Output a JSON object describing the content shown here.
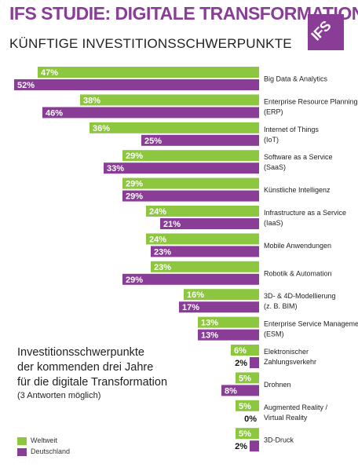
{
  "header": {
    "title": "IFS STUDIE: DIGITALE TRANSFORMATION",
    "subtitle": "KÜNFTIGE INVESTITIONSSCHWERPUNKTE",
    "logo_text": "IFS"
  },
  "description": {
    "lines": [
      "Investitionsschwerpunkte",
      "der kommenden drei Jahre",
      "für die digitale Transformation"
    ],
    "note": "(3 Antworten möglich)"
  },
  "colors": {
    "weltweit": "#8dc63f",
    "deutschland": "#8a3d97",
    "title": "#8a3d97"
  },
  "chart_data": {
    "type": "bar",
    "orientation": "horizontal",
    "unit": "%",
    "categories": [
      [
        "Big Data & Analytics"
      ],
      [
        "Enterprise Resource Planning",
        "(ERP)"
      ],
      [
        "Internet of Things",
        "(IoT)"
      ],
      [
        "Software as a Service",
        "(SaaS)"
      ],
      [
        "Künstliche Intelligenz"
      ],
      [
        "Infrastructure as a Service",
        "(IaaS)"
      ],
      [
        "Mobile Anwendungen"
      ],
      [
        "Robotik & Automation"
      ],
      [
        "3D- & 4D-Modellierung",
        "(z. B. BIM)"
      ],
      [
        "Enterprise Service Management",
        "(ESM)"
      ],
      [
        "Elektronischer",
        "Zahlungsverkehr"
      ],
      [
        "Drohnen"
      ],
      [
        "Augmented Reality /",
        "Virtual Reality"
      ],
      [
        "3D-Druck"
      ]
    ],
    "series": [
      {
        "name": "Weltweit",
        "values": [
          47,
          38,
          36,
          29,
          29,
          24,
          24,
          23,
          16,
          13,
          6,
          5,
          5,
          5
        ],
        "labels": [
          "47%",
          "38%",
          "36%",
          "29%",
          "29%",
          "24%",
          "24%",
          "23%",
          "16%",
          "13%",
          "6%",
          "5%",
          "5%",
          "5%"
        ]
      },
      {
        "name": "Deutschland",
        "values": [
          52,
          46,
          25,
          33,
          29,
          21,
          23,
          29,
          17,
          13,
          2,
          8,
          0,
          2
        ],
        "labels": [
          "52%",
          "46%",
          "25%",
          "33%",
          "29%",
          "21%",
          "23%",
          "29%",
          "17%",
          "13%",
          "2%",
          "8%",
          "0%",
          "2%"
        ]
      }
    ],
    "legend": {
      "position": "bottom-left",
      "items": [
        "Weltweit",
        "Deutschland"
      ]
    }
  }
}
